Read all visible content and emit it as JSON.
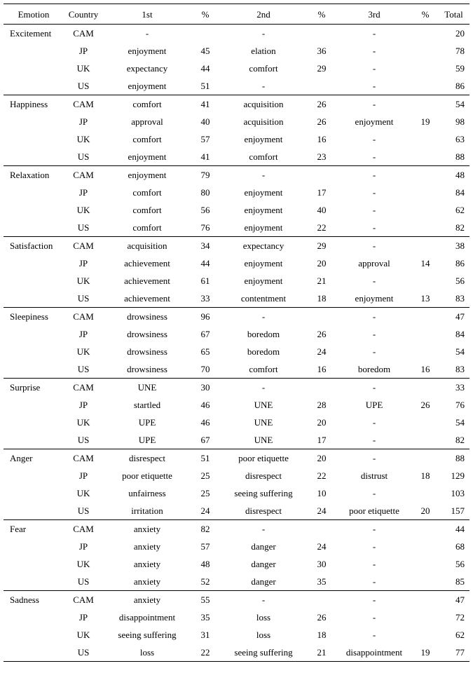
{
  "table": {
    "headers": [
      "Emotion",
      "Country",
      "1st",
      "%",
      "2nd",
      "%",
      "3rd",
      "%",
      "Total"
    ],
    "groups": [
      {
        "emotion": "Excitement",
        "rows": [
          {
            "country": "CAM",
            "first": "-",
            "first_pct": "",
            "second": "-",
            "second_pct": "",
            "third": "-",
            "third_pct": "",
            "total": "20"
          },
          {
            "country": "JP",
            "first": "enjoyment",
            "first_pct": "45",
            "second": "elation",
            "second_pct": "36",
            "third": "-",
            "third_pct": "",
            "total": "78"
          },
          {
            "country": "UK",
            "first": "expectancy",
            "first_pct": "44",
            "second": "comfort",
            "second_pct": "29",
            "third": "-",
            "third_pct": "",
            "total": "59"
          },
          {
            "country": "US",
            "first": "enjoyment",
            "first_pct": "51",
            "second": "-",
            "second_pct": "",
            "third": "-",
            "third_pct": "",
            "total": "86"
          }
        ]
      },
      {
        "emotion": "Happiness",
        "rows": [
          {
            "country": "CAM",
            "first": "comfort",
            "first_pct": "41",
            "second": "acquisition",
            "second_pct": "26",
            "third": "-",
            "third_pct": "",
            "total": "54"
          },
          {
            "country": "JP",
            "first": "approval",
            "first_pct": "40",
            "second": "acquisition",
            "second_pct": "26",
            "third": "enjoyment",
            "third_pct": "19",
            "total": "98"
          },
          {
            "country": "UK",
            "first": "comfort",
            "first_pct": "57",
            "second": "enjoyment",
            "second_pct": "16",
            "third": "-",
            "third_pct": "",
            "total": "63"
          },
          {
            "country": "US",
            "first": "enjoyment",
            "first_pct": "41",
            "second": "comfort",
            "second_pct": "23",
            "third": "-",
            "third_pct": "",
            "total": "88"
          }
        ]
      },
      {
        "emotion": "Relaxation",
        "rows": [
          {
            "country": "CAM",
            "first": "enjoyment",
            "first_pct": "79",
            "second": "-",
            "second_pct": "",
            "third": "-",
            "third_pct": "",
            "total": "48"
          },
          {
            "country": "JP",
            "first": "comfort",
            "first_pct": "80",
            "second": "enjoyment",
            "second_pct": "17",
            "third": "-",
            "third_pct": "",
            "total": "84"
          },
          {
            "country": "UK",
            "first": "comfort",
            "first_pct": "56",
            "second": "enjoyment",
            "second_pct": "40",
            "third": "-",
            "third_pct": "",
            "total": "62"
          },
          {
            "country": "US",
            "first": "comfort",
            "first_pct": "76",
            "second": "enjoyment",
            "second_pct": "22",
            "third": "-",
            "third_pct": "",
            "total": "82"
          }
        ]
      },
      {
        "emotion": "Satisfaction",
        "rows": [
          {
            "country": "CAM",
            "first": "acquisition",
            "first_pct": "34",
            "second": "expectancy",
            "second_pct": "29",
            "third": "-",
            "third_pct": "",
            "total": "38"
          },
          {
            "country": "JP",
            "first": "achievement",
            "first_pct": "44",
            "second": "enjoyment",
            "second_pct": "20",
            "third": "approval",
            "third_pct": "14",
            "total": "86"
          },
          {
            "country": "UK",
            "first": "achievement",
            "first_pct": "61",
            "second": "enjoyment",
            "second_pct": "21",
            "third": "-",
            "third_pct": "",
            "total": "56"
          },
          {
            "country": "US",
            "first": "achievement",
            "first_pct": "33",
            "second": "contentment",
            "second_pct": "18",
            "third": "enjoyment",
            "third_pct": "13",
            "total": "83"
          }
        ]
      },
      {
        "emotion": "Sleepiness",
        "rows": [
          {
            "country": "CAM",
            "first": "drowsiness",
            "first_pct": "96",
            "second": "-",
            "second_pct": "",
            "third": "-",
            "third_pct": "",
            "total": "47"
          },
          {
            "country": "JP",
            "first": "drowsiness",
            "first_pct": "67",
            "second": "boredom",
            "second_pct": "26",
            "third": "-",
            "third_pct": "",
            "total": "84"
          },
          {
            "country": "UK",
            "first": "drowsiness",
            "first_pct": "65",
            "second": "boredom",
            "second_pct": "24",
            "third": "-",
            "third_pct": "",
            "total": "54"
          },
          {
            "country": "US",
            "first": "drowsiness",
            "first_pct": "70",
            "second": "comfort",
            "second_pct": "16",
            "third": "boredom",
            "third_pct": "16",
            "total": "83"
          }
        ]
      },
      {
        "emotion": "Surprise",
        "rows": [
          {
            "country": "CAM",
            "first": "UNE",
            "first_pct": "30",
            "second": "-",
            "second_pct": "",
            "third": "-",
            "third_pct": "",
            "total": "33"
          },
          {
            "country": "JP",
            "first": "startled",
            "first_pct": "46",
            "second": "UNE",
            "second_pct": "28",
            "third": "UPE",
            "third_pct": "26",
            "total": "76"
          },
          {
            "country": "UK",
            "first": "UPE",
            "first_pct": "46",
            "second": "UNE",
            "second_pct": "20",
            "third": "-",
            "third_pct": "",
            "total": "54"
          },
          {
            "country": "US",
            "first": "UPE",
            "first_pct": "67",
            "second": "UNE",
            "second_pct": "17",
            "third": "-",
            "third_pct": "",
            "total": "82"
          }
        ]
      },
      {
        "emotion": "Anger",
        "rows": [
          {
            "country": "CAM",
            "first": "disrespect",
            "first_pct": "51",
            "second": "poor etiquette",
            "second_pct": "20",
            "third": "-",
            "third_pct": "",
            "total": "88"
          },
          {
            "country": "JP",
            "first": "poor etiquette",
            "first_pct": "25",
            "second": "disrespect",
            "second_pct": "22",
            "third": "distrust",
            "third_pct": "18",
            "total": "129"
          },
          {
            "country": "UK",
            "first": "unfairness",
            "first_pct": "25",
            "second": "seeing suffering",
            "second_pct": "10",
            "third": "-",
            "third_pct": "",
            "total": "103"
          },
          {
            "country": "US",
            "first": "irritation",
            "first_pct": "24",
            "second": "disrespect",
            "second_pct": "24",
            "third": "poor etiquette",
            "third_pct": "20",
            "total": "157"
          }
        ]
      },
      {
        "emotion": "Fear",
        "rows": [
          {
            "country": "CAM",
            "first": "anxiety",
            "first_pct": "82",
            "second": "-",
            "second_pct": "",
            "third": "-",
            "third_pct": "",
            "total": "44"
          },
          {
            "country": "JP",
            "first": "anxiety",
            "first_pct": "57",
            "second": "danger",
            "second_pct": "24",
            "third": "-",
            "third_pct": "",
            "total": "68"
          },
          {
            "country": "UK",
            "first": "anxiety",
            "first_pct": "48",
            "second": "danger",
            "second_pct": "30",
            "third": "-",
            "third_pct": "",
            "total": "56"
          },
          {
            "country": "US",
            "first": "anxiety",
            "first_pct": "52",
            "second": "danger",
            "second_pct": "35",
            "third": "-",
            "third_pct": "",
            "total": "85"
          }
        ]
      },
      {
        "emotion": "Sadness",
        "rows": [
          {
            "country": "CAM",
            "first": "anxiety",
            "first_pct": "55",
            "second": "-",
            "second_pct": "",
            "third": "-",
            "third_pct": "",
            "total": "47"
          },
          {
            "country": "JP",
            "first": "disappointment",
            "first_pct": "35",
            "second": "loss",
            "second_pct": "26",
            "third": "-",
            "third_pct": "",
            "total": "72"
          },
          {
            "country": "UK",
            "first": "seeing suffering",
            "first_pct": "31",
            "second": "loss",
            "second_pct": "18",
            "third": "-",
            "third_pct": "",
            "total": "62"
          },
          {
            "country": "US",
            "first": "loss",
            "first_pct": "22",
            "second": "seeing suffering",
            "second_pct": "21",
            "third": "disappointment",
            "third_pct": "19",
            "total": "77"
          }
        ]
      }
    ]
  }
}
